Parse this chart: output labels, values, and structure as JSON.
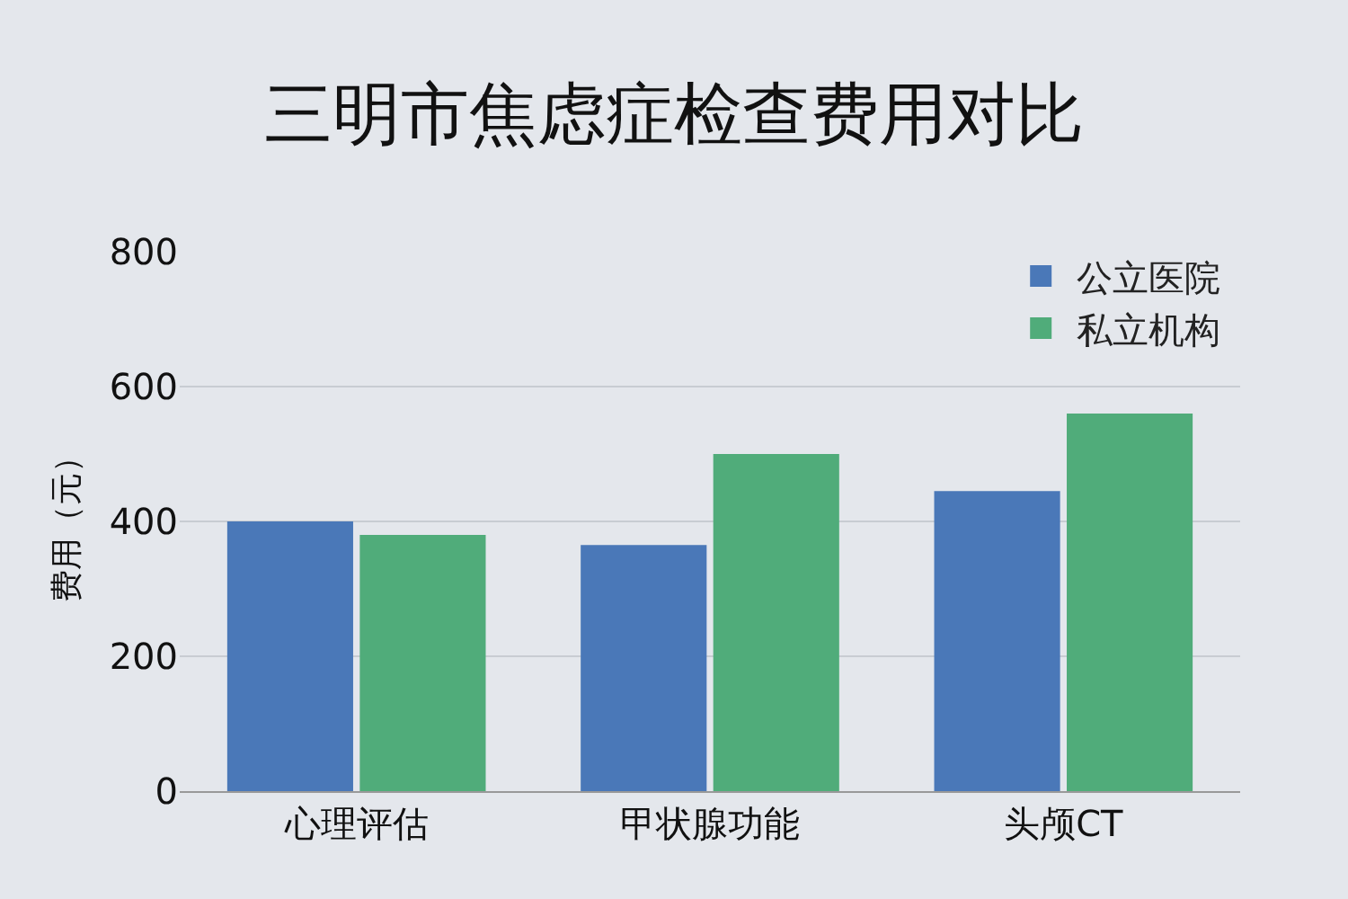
{
  "chart_data": {
    "type": "bar",
    "title": "三明市焦虑症检查费用对比",
    "ylabel": "费用（元）",
    "categories": [
      "心理评估",
      "甲状腺功能",
      "头颅CT"
    ],
    "series": [
      {
        "name": "公立医院",
        "color": "#4a78b8",
        "values": [
          400,
          365,
          445
        ]
      },
      {
        "name": "私立机构",
        "color": "#50ac7a",
        "values": [
          380,
          500,
          560
        ]
      }
    ],
    "ylim": [
      0,
      800
    ],
    "yticks": [
      0,
      200,
      400,
      600,
      800
    ],
    "grid": "y",
    "legend": "top right"
  }
}
